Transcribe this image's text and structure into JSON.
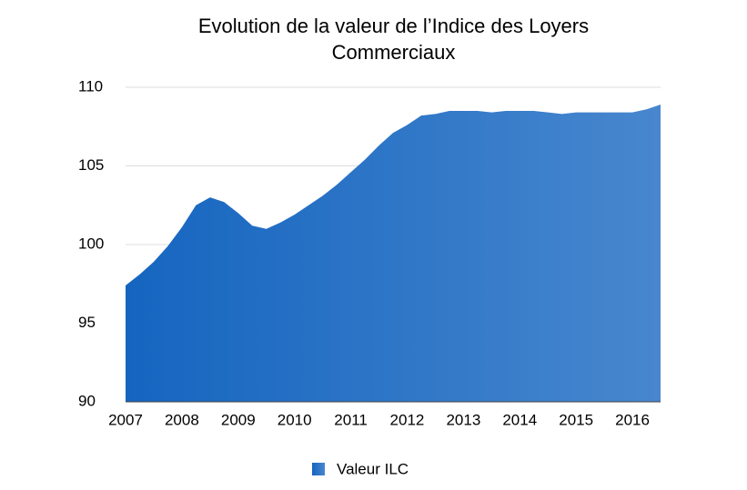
{
  "chart_data": {
    "type": "area",
    "title": "Evolution de la valeur de l’Indice des Loyers Commerciaux",
    "x": [
      2007,
      2007.25,
      2007.5,
      2007.75,
      2008,
      2008.25,
      2008.5,
      2008.75,
      2009,
      2009.25,
      2009.5,
      2009.75,
      2010,
      2010.25,
      2010.5,
      2010.75,
      2011,
      2011.25,
      2011.5,
      2011.75,
      2012,
      2012.25,
      2012.5,
      2012.75,
      2013,
      2013.25,
      2013.5,
      2013.75,
      2014,
      2014.25,
      2014.5,
      2014.75,
      2015,
      2015.25,
      2015.5,
      2015.75,
      2016,
      2016.25,
      2016.5
    ],
    "series": [
      {
        "name": "Valeur ILC",
        "color": "#1565c0",
        "values": [
          97.4,
          98.1,
          98.9,
          99.9,
          101.1,
          102.5,
          103.0,
          102.7,
          102.0,
          101.2,
          101.0,
          101.4,
          101.9,
          102.5,
          103.1,
          103.8,
          104.6,
          105.4,
          106.3,
          107.1,
          107.6,
          108.2,
          108.3,
          108.5,
          108.5,
          108.5,
          108.4,
          108.5,
          108.5,
          108.5,
          108.4,
          108.3,
          108.4,
          108.4,
          108.4,
          108.4,
          108.4,
          108.6,
          108.9
        ]
      }
    ],
    "xlim": [
      2007,
      2016.5
    ],
    "xticks": [
      2007,
      2008,
      2009,
      2010,
      2011,
      2012,
      2013,
      2014,
      2015,
      2016
    ],
    "ylim": [
      90,
      110
    ],
    "yticks": [
      90,
      95,
      100,
      105,
      110
    ],
    "grid": true
  }
}
